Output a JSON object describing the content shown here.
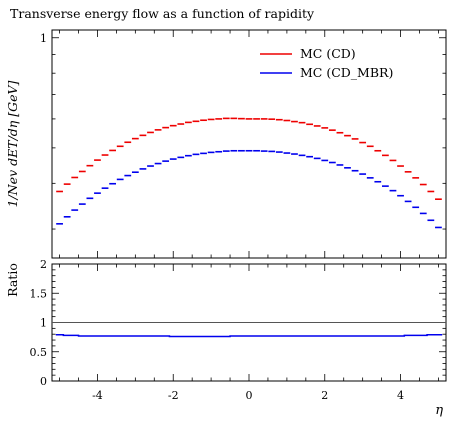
{
  "chart_data": {
    "type": "line",
    "title": "Transverse energy flow as a function of rapidity",
    "xlabel": "η",
    "main_ylabel": "1/Nev dET/dη [GeV]",
    "main_ytick_labels": [
      "1"
    ],
    "xlim": [
      -5.2,
      5.2
    ],
    "x_ticks": [
      -4,
      -2,
      0,
      2,
      4
    ],
    "x_tick_labels": [
      "-4",
      "-2",
      "0",
      "2",
      "4"
    ],
    "main_ylim": [
      0.25,
      1.05
    ],
    "main_yscale": "log",
    "x": [
      -5.0,
      -4.8,
      -4.6,
      -4.4,
      -4.2,
      -4.0,
      -3.8,
      -3.6,
      -3.4,
      -3.2,
      -3.0,
      -2.8,
      -2.6,
      -2.4,
      -2.2,
      -2.0,
      -1.8,
      -1.6,
      -1.4,
      -1.2,
      -1.0,
      -0.8,
      -0.6,
      -0.4,
      -0.2,
      0.0,
      0.2,
      0.4,
      0.6,
      0.8,
      1.0,
      1.2,
      1.4,
      1.6,
      1.8,
      2.0,
      2.2,
      2.4,
      2.6,
      2.8,
      3.0,
      3.2,
      3.4,
      3.6,
      3.8,
      4.0,
      4.2,
      4.4,
      4.6,
      4.8,
      5.0
    ],
    "series": [
      {
        "name": "MC (CD)",
        "color": "#ee0000",
        "values": [
          0.38,
          0.398,
          0.415,
          0.431,
          0.447,
          0.463,
          0.478,
          0.492,
          0.505,
          0.518,
          0.53,
          0.541,
          0.551,
          0.56,
          0.568,
          0.575,
          0.581,
          0.587,
          0.591,
          0.595,
          0.598,
          0.6,
          0.602,
          0.602,
          0.601,
          0.6,
          0.6,
          0.6,
          0.599,
          0.597,
          0.594,
          0.59,
          0.586,
          0.58,
          0.574,
          0.567,
          0.559,
          0.55,
          0.54,
          0.529,
          0.517,
          0.505,
          0.491,
          0.477,
          0.462,
          0.446,
          0.43,
          0.414,
          0.397,
          0.38,
          0.362
        ]
      },
      {
        "name": "MC (CD_MBR)",
        "color": "#0000ee",
        "values": [
          0.31,
          0.324,
          0.338,
          0.351,
          0.364,
          0.376,
          0.388,
          0.399,
          0.41,
          0.42,
          0.429,
          0.438,
          0.446,
          0.453,
          0.46,
          0.466,
          0.471,
          0.476,
          0.48,
          0.483,
          0.486,
          0.488,
          0.49,
          0.491,
          0.491,
          0.491,
          0.491,
          0.49,
          0.489,
          0.487,
          0.484,
          0.481,
          0.477,
          0.473,
          0.468,
          0.462,
          0.456,
          0.449,
          0.441,
          0.433,
          0.424,
          0.414,
          0.404,
          0.393,
          0.382,
          0.37,
          0.357,
          0.344,
          0.331,
          0.317,
          0.303
        ]
      }
    ],
    "legend": "top-right",
    "ratio": {
      "ylabel": "Ratio",
      "ylim": [
        0,
        2
      ],
      "yticks": [
        "0",
        "0.5",
        "1",
        "1.5",
        "2"
      ],
      "reference": 1,
      "color": "#0000ee",
      "values": [
        0.79,
        0.78,
        0.78,
        0.77,
        0.77,
        0.77,
        0.77,
        0.77,
        0.77,
        0.77,
        0.77,
        0.77,
        0.77,
        0.77,
        0.77,
        0.76,
        0.76,
        0.76,
        0.76,
        0.76,
        0.76,
        0.76,
        0.76,
        0.77,
        0.77,
        0.77,
        0.77,
        0.77,
        0.77,
        0.77,
        0.77,
        0.77,
        0.77,
        0.77,
        0.77,
        0.77,
        0.77,
        0.77,
        0.77,
        0.77,
        0.77,
        0.77,
        0.77,
        0.77,
        0.77,
        0.77,
        0.78,
        0.78,
        0.78,
        0.79,
        0.79
      ]
    }
  }
}
